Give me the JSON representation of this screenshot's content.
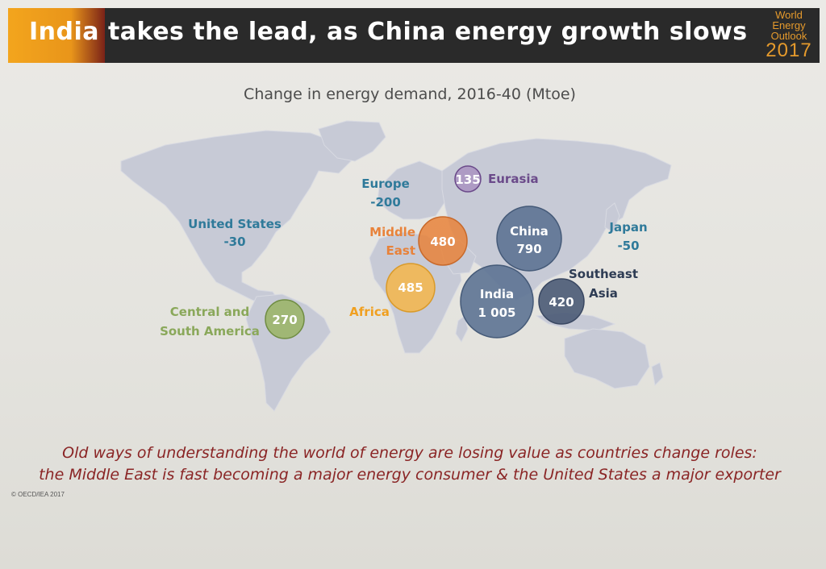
{
  "header": {
    "title": "India takes the lead, as China energy growth slows",
    "logo_line1": "World",
    "logo_line2": "Energy",
    "logo_line3": "Outlook",
    "logo_year": "2017"
  },
  "subtitle": "Change in energy demand, 2016-40 (Mtoe)",
  "regions": {
    "united_states": {
      "name": "United States",
      "value": "-30"
    },
    "europe": {
      "name": "Europe",
      "value": "-200"
    },
    "eurasia": {
      "name": "Eurasia",
      "value": "135"
    },
    "middle_east": {
      "name_line1": "Middle",
      "name_line2": "East",
      "value": "480"
    },
    "china": {
      "name": "China",
      "value": "790"
    },
    "japan": {
      "name": "Japan",
      "value": "-50"
    },
    "southeast_asia": {
      "name_line1": "Southeast",
      "name_line2": "Asia",
      "value": "420"
    },
    "india": {
      "name": "India",
      "value": "1 005"
    },
    "africa": {
      "name": "Africa",
      "value": "485"
    },
    "central_south_america": {
      "name_line1": "Central and",
      "name_line2": "South America",
      "value": "270"
    }
  },
  "colors": {
    "banner": "#2a2a2a",
    "accent": "#f3a51d",
    "land": "#c9ccd6",
    "us_europe_japan": "#2f7a9a",
    "eurasia": "#6b4a8a",
    "middle_east": "#e8823a",
    "china_india": "#5d7393",
    "southeast_asia": "#4a5a76",
    "africa": "#f4b64a",
    "latin_america": "#8aa85a",
    "caption": "#8a2525"
  },
  "caption": {
    "line1": "Old ways of understanding the world of energy are losing value as countries change roles:",
    "line2": "the Middle East is fast becoming a major energy consumer & the United States a major exporter"
  },
  "copyright": "© OECD/IEA 2017"
}
